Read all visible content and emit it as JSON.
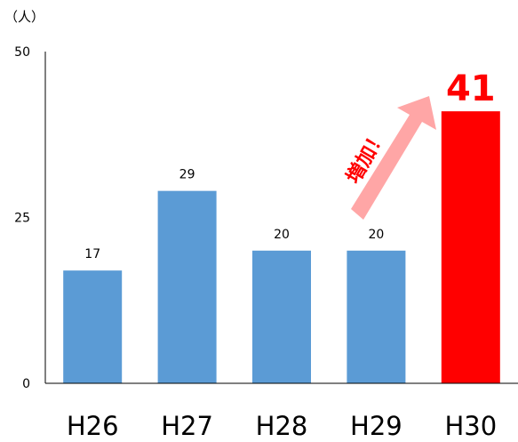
{
  "chart_data": {
    "type": "bar",
    "categories": [
      "H26",
      "H27",
      "H28",
      "H29",
      "H30"
    ],
    "values": [
      17,
      29,
      20,
      20,
      41
    ],
    "ylabel": "（人）",
    "ylim": [
      0,
      50
    ],
    "yticks": [
      "0",
      "25",
      "50"
    ],
    "data_labels": [
      "17",
      "29",
      "20",
      "20",
      "41"
    ],
    "annotation": "増加！",
    "colors": {
      "bar": "#5b9bd5",
      "highlight_bar": "#ff0000",
      "arrow": "#ffa6a6",
      "annotation_text": "#ff0000"
    },
    "highlight_index": 4,
    "grid": false
  }
}
